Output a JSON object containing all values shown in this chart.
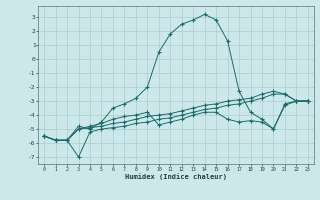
{
  "x": [
    0,
    1,
    2,
    3,
    4,
    5,
    6,
    7,
    8,
    9,
    10,
    11,
    12,
    13,
    14,
    15,
    16,
    17,
    18,
    19,
    20,
    21,
    22,
    23
  ],
  "line1_y": [
    -5.5,
    -5.8,
    -5.8,
    -4.8,
    -5.0,
    -4.5,
    -3.5,
    -3.2,
    -2.8,
    -2.0,
    0.5,
    1.8,
    2.5,
    2.8,
    3.2,
    2.8,
    1.3,
    -2.3,
    -3.8,
    -4.3,
    -5.0,
    -3.2,
    -3.0,
    -3.0
  ],
  "line2_y": [
    -5.5,
    -5.8,
    -5.8,
    -5.0,
    -4.8,
    -4.6,
    -4.3,
    -4.1,
    -4.0,
    -3.8,
    -4.7,
    -4.5,
    -4.3,
    -4.0,
    -3.8,
    -3.8,
    -4.3,
    -4.5,
    -4.4,
    -4.5,
    -5.0,
    -3.3,
    -3.0,
    -3.0
  ],
  "line3_y": [
    -5.5,
    -5.8,
    -5.8,
    -5.0,
    -4.9,
    -4.8,
    -4.6,
    -4.5,
    -4.3,
    -4.1,
    -4.0,
    -3.9,
    -3.7,
    -3.5,
    -3.3,
    -3.2,
    -3.0,
    -2.9,
    -2.8,
    -2.5,
    -2.3,
    -2.5,
    -3.0,
    -3.0
  ],
  "line4_y": [
    -5.5,
    -5.8,
    -5.8,
    -7.0,
    -5.2,
    -5.0,
    -4.9,
    -4.8,
    -4.6,
    -4.5,
    -4.3,
    -4.2,
    -4.0,
    -3.8,
    -3.6,
    -3.5,
    -3.3,
    -3.2,
    -3.0,
    -2.8,
    -2.5,
    -2.5,
    -3.0,
    -3.0
  ],
  "bg_color": "#cce8ea",
  "grid_color": "#aacccc",
  "line_color": "#1a6b6b",
  "xlabel": "Humidex (Indice chaleur)",
  "xlim": [
    -0.5,
    23.5
  ],
  "ylim": [
    -7.5,
    3.8
  ],
  "yticks": [
    -7,
    -6,
    -5,
    -4,
    -3,
    -2,
    -1,
    0,
    1,
    2,
    3
  ],
  "xticks": [
    0,
    1,
    2,
    3,
    4,
    5,
    6,
    7,
    8,
    9,
    10,
    11,
    12,
    13,
    14,
    15,
    16,
    17,
    18,
    19,
    20,
    21,
    22,
    23
  ]
}
